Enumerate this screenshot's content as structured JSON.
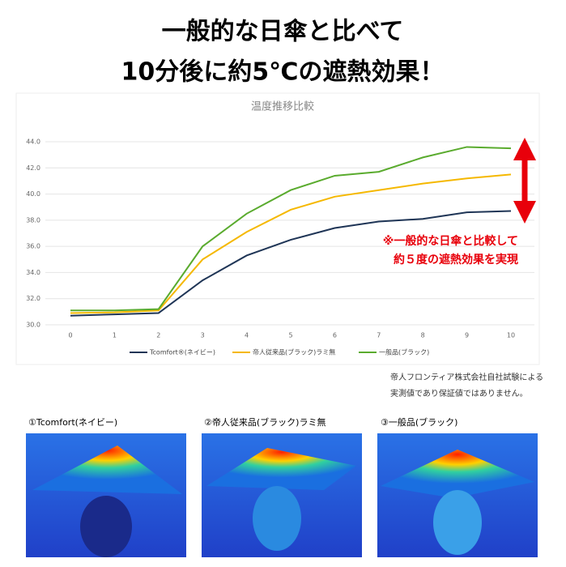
{
  "header": {
    "lines": [
      "一般的な日傘と比べて",
      "10分後に約5℃の遮熱効果！"
    ]
  },
  "chart_data": {
    "type": "line",
    "title": "温度推移比較",
    "x": [
      0,
      1,
      2,
      3,
      4,
      5,
      6,
      7,
      8,
      9,
      10
    ],
    "xlim": [
      0,
      10
    ],
    "xticks": [
      0,
      1,
      2,
      3,
      4,
      5,
      6,
      7,
      8,
      9,
      10
    ],
    "ylim": [
      30,
      44
    ],
    "yticks": [
      {
        "value": 30,
        "label": "30.0"
      },
      {
        "value": 32,
        "label": "32.0"
      },
      {
        "value": 34,
        "label": "34.0"
      },
      {
        "value": 36,
        "label": "36.0"
      },
      {
        "value": 38,
        "label": "38.0"
      },
      {
        "value": 40,
        "label": "40.0"
      },
      {
        "value": 42,
        "label": "42.0"
      },
      {
        "value": 44,
        "label": "44.0"
      }
    ],
    "grid": true,
    "series": [
      {
        "name": "Tcomfort®(ネイビー)",
        "color": "#1f3556",
        "values": [
          30.7,
          30.8,
          30.9,
          33.4,
          35.3,
          36.5,
          37.4,
          37.9,
          38.1,
          38.6,
          38.7
        ]
      },
      {
        "name": "帝人従来品(ブラック)ラミ無",
        "color": "#f5b800",
        "values": [
          30.9,
          30.95,
          31.1,
          35.0,
          37.1,
          38.8,
          39.8,
          40.3,
          40.8,
          41.2,
          41.5
        ]
      },
      {
        "name": "一般品(ブラック)",
        "color": "#5aab2e",
        "values": [
          31.1,
          31.1,
          31.2,
          36.0,
          38.5,
          40.3,
          41.4,
          41.7,
          42.8,
          43.6,
          43.5
        ]
      }
    ],
    "annotation": [
      "※一般的な日傘と比較して",
      "約５度の遮熱効果を実現"
    ]
  },
  "footnote": [
    "帝人フロンティア株式会社自社試験による",
    "実測値であり保証値ではありません。"
  ],
  "images": [
    {
      "caption": "①Tcomfort(ネイビー)"
    },
    {
      "caption": "②帝人従来品(ブラック)ラミ無"
    },
    {
      "caption": "③一般品(ブラック)"
    }
  ]
}
